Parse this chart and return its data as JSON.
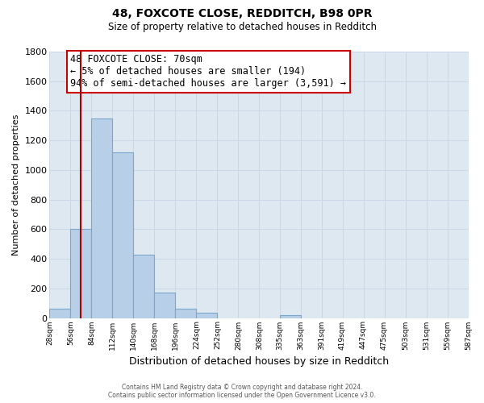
{
  "title_line1": "48, FOXCOTE CLOSE, REDDITCH, B98 0PR",
  "title_line2": "Size of property relative to detached houses in Redditch",
  "xlabel": "Distribution of detached houses by size in Redditch",
  "ylabel": "Number of detached properties",
  "bar_edges": [
    28,
    56,
    84,
    112,
    140,
    168,
    196,
    224,
    252,
    280,
    308,
    335,
    363,
    391,
    419,
    447,
    475,
    503,
    531,
    559,
    587
  ],
  "bar_heights": [
    60,
    600,
    1350,
    1120,
    430,
    170,
    65,
    35,
    0,
    0,
    0,
    20,
    0,
    0,
    0,
    0,
    0,
    0,
    0,
    0
  ],
  "bar_color": "#b8cfe8",
  "bar_edgecolor": "#7ba7cc",
  "ylim": [
    0,
    1800
  ],
  "yticks": [
    0,
    200,
    400,
    600,
    800,
    1000,
    1200,
    1400,
    1600,
    1800
  ],
  "xtick_labels": [
    "28sqm",
    "56sqm",
    "84sqm",
    "112sqm",
    "140sqm",
    "168sqm",
    "196sqm",
    "224sqm",
    "252sqm",
    "280sqm",
    "308sqm",
    "335sqm",
    "363sqm",
    "391sqm",
    "419sqm",
    "447sqm",
    "475sqm",
    "503sqm",
    "531sqm",
    "559sqm",
    "587sqm"
  ],
  "vline_x": 70,
  "vline_color": "#aa0000",
  "annotation_title": "48 FOXCOTE CLOSE: 70sqm",
  "annotation_line1": "← 5% of detached houses are smaller (194)",
  "annotation_line2": "94% of semi-detached houses are larger (3,591) →",
  "annotation_box_color": "#ffffff",
  "annotation_box_edgecolor": "#cc0000",
  "footer_line1": "Contains HM Land Registry data © Crown copyright and database right 2024.",
  "footer_line2": "Contains public sector information licensed under the Open Government Licence v3.0.",
  "grid_color": "#c8d8e8",
  "background_color": "#dde8f0"
}
